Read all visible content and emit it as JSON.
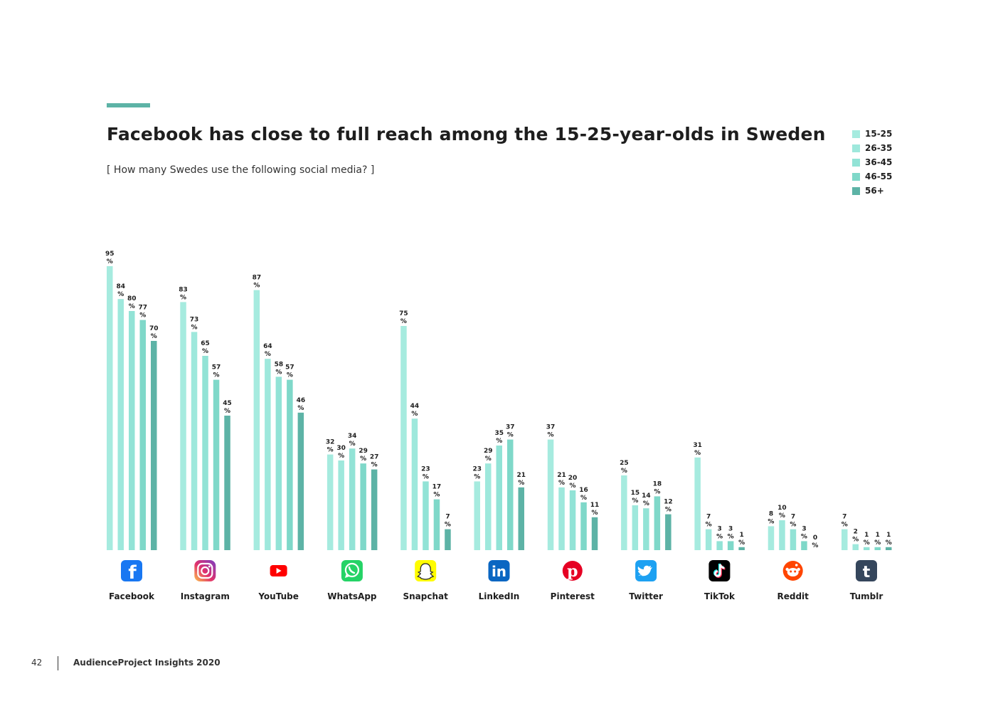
{
  "header": {
    "title": "Facebook has close to full reach among the 15-25-year-olds in Sweden",
    "subtitle": "[ How many Swedes use the following social media? ]"
  },
  "legend": [
    {
      "label": "15-25",
      "color": "#a6ebdf"
    },
    {
      "label": "26-35",
      "color": "#9ee8dc"
    },
    {
      "label": "36-45",
      "color": "#92e3d6"
    },
    {
      "label": "46-55",
      "color": "#7fd8c9"
    },
    {
      "label": "56+",
      "color": "#5db3a6"
    }
  ],
  "chart_data": {
    "type": "bar",
    "categories": [
      "Facebook",
      "Instagram",
      "YouTube",
      "WhatsApp",
      "Snapchat",
      "LinkedIn",
      "Pinterest",
      "Twitter",
      "TikTok",
      "Reddit",
      "Tumblr"
    ],
    "icons": [
      "facebook-icon",
      "instagram-icon",
      "youtube-icon",
      "whatsapp-icon",
      "snapchat-icon",
      "linkedin-icon",
      "pinterest-icon",
      "twitter-icon",
      "tiktok-icon",
      "reddit-icon",
      "tumblr-icon"
    ],
    "value_suffix": "%",
    "series": [
      {
        "name": "15-25",
        "values": [
          95,
          83,
          87,
          32,
          75,
          23,
          37,
          25,
          31,
          8,
          7
        ]
      },
      {
        "name": "26-35",
        "values": [
          84,
          73,
          64,
          30,
          44,
          29,
          21,
          15,
          7,
          10,
          2
        ]
      },
      {
        "name": "36-45",
        "values": [
          80,
          65,
          58,
          34,
          23,
          35,
          20,
          14,
          3,
          7,
          1
        ]
      },
      {
        "name": "46-55",
        "values": [
          77,
          57,
          57,
          29,
          17,
          37,
          16,
          18,
          3,
          3,
          1
        ]
      },
      {
        "name": "56+",
        "values": [
          70,
          45,
          46,
          27,
          7,
          21,
          11,
          12,
          1,
          0,
          1
        ]
      }
    ],
    "ylim": [
      0,
      100
    ],
    "grid": false,
    "legend_position": "top-right"
  },
  "footer": {
    "page_number": "42",
    "publication": "AudienceProject Insights 2020"
  }
}
